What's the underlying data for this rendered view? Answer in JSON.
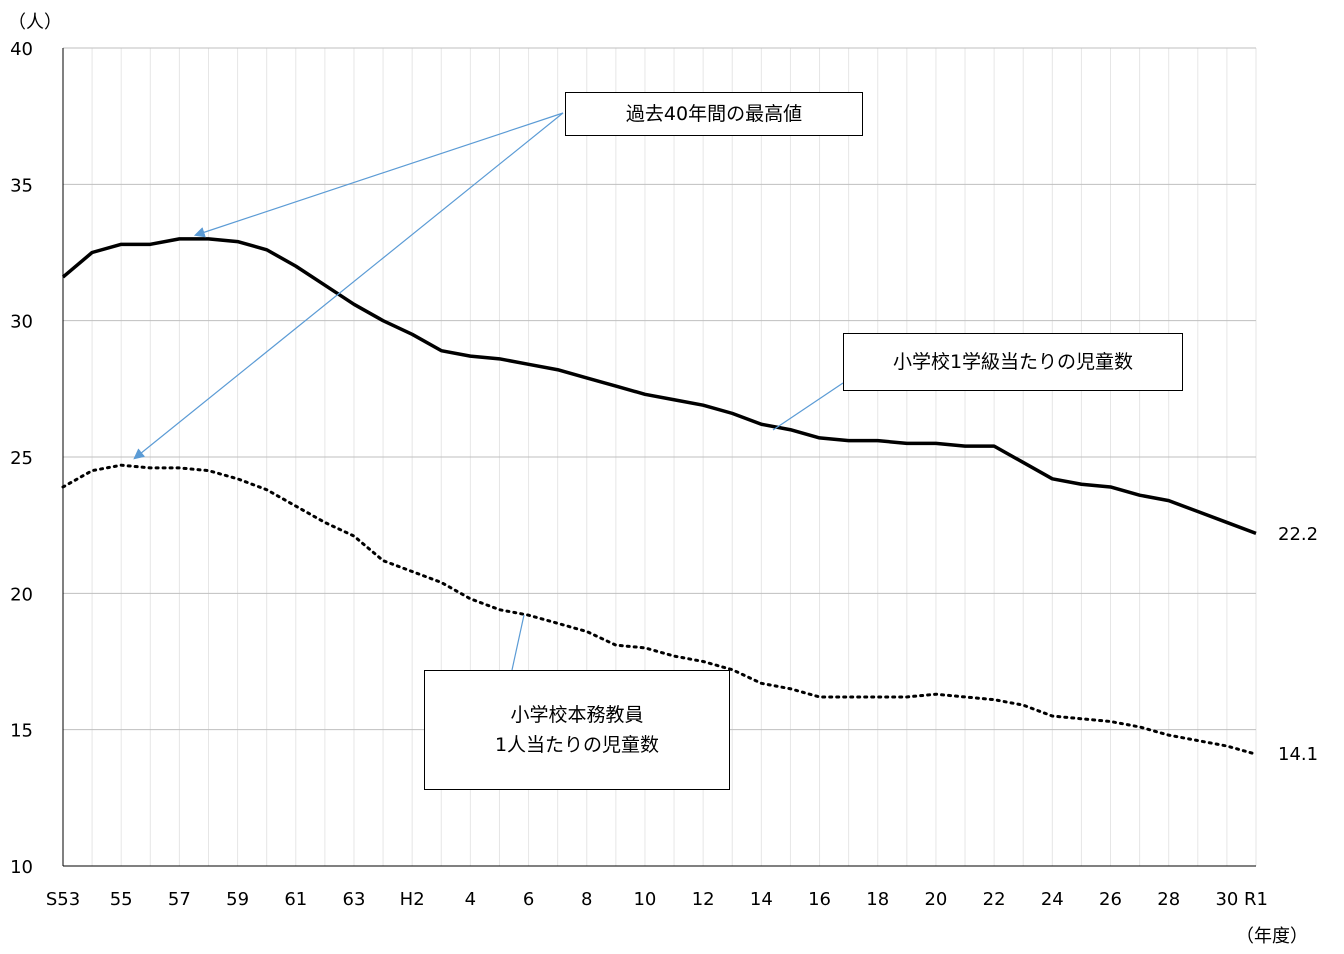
{
  "chart_data": {
    "type": "line",
    "y_unit": "（人）",
    "x_unit": "（年度）",
    "ylim": [
      10,
      40
    ],
    "yticks": [
      10,
      15,
      20,
      25,
      30,
      35,
      40
    ],
    "grid": true,
    "x": [
      "S53",
      "54",
      "55",
      "56",
      "57",
      "58",
      "59",
      "60",
      "61",
      "62",
      "63",
      "H1",
      "H2",
      "3",
      "4",
      "5",
      "6",
      "7",
      "8",
      "9",
      "10",
      "11",
      "12",
      "13",
      "14",
      "15",
      "16",
      "17",
      "18",
      "19",
      "20",
      "21",
      "22",
      "23",
      "24",
      "25",
      "26",
      "27",
      "28",
      "29",
      "30",
      "R1"
    ],
    "x_tick_labels": [
      "S53",
      "55",
      "57",
      "59",
      "61",
      "63",
      "H2",
      "4",
      "6",
      "8",
      "10",
      "12",
      "14",
      "16",
      "18",
      "20",
      "22",
      "24",
      "26",
      "28",
      "30",
      "R1"
    ],
    "series": [
      {
        "name": "小学校1学級当たりの児童数",
        "style": "solid",
        "color": "#000000",
        "values": [
          31.6,
          32.5,
          32.8,
          32.8,
          33.0,
          33.0,
          32.9,
          32.6,
          32.0,
          31.3,
          30.6,
          30.0,
          29.5,
          28.9,
          28.7,
          28.6,
          28.4,
          28.2,
          27.9,
          27.6,
          27.3,
          27.1,
          26.9,
          26.6,
          26.2,
          26.0,
          25.7,
          25.6,
          25.6,
          25.5,
          25.5,
          25.4,
          25.4,
          24.8,
          24.2,
          24.0,
          23.9,
          23.6,
          23.4,
          23.0,
          22.6,
          22.2
        ]
      },
      {
        "name": "小学校本務教員1人当たりの児童数",
        "style": "dotted",
        "color": "#000000",
        "values": [
          23.9,
          24.5,
          24.7,
          24.6,
          24.6,
          24.5,
          24.2,
          23.8,
          23.2,
          22.6,
          22.1,
          21.2,
          20.8,
          20.4,
          19.8,
          19.4,
          19.2,
          18.9,
          18.6,
          18.1,
          18.0,
          17.7,
          17.5,
          17.2,
          16.7,
          16.5,
          16.2,
          16.2,
          16.2,
          16.2,
          16.3,
          16.2,
          16.1,
          15.9,
          15.5,
          15.4,
          15.3,
          15.1,
          14.8,
          14.6,
          14.4,
          14.1
        ]
      }
    ],
    "end_labels": [
      "22.2",
      "14.1"
    ],
    "annotations": {
      "max_label": "過去40年間の最高値",
      "series1_label": "小学校1学級当たりの児童数",
      "series2_label_line1": "小学校本務教員",
      "series2_label_line2": "1人当たりの児童数"
    },
    "colors": {
      "arrow": "#5b9bd5",
      "grid": "#bfbfbf",
      "minor_grid": "#e6e6e6"
    }
  }
}
